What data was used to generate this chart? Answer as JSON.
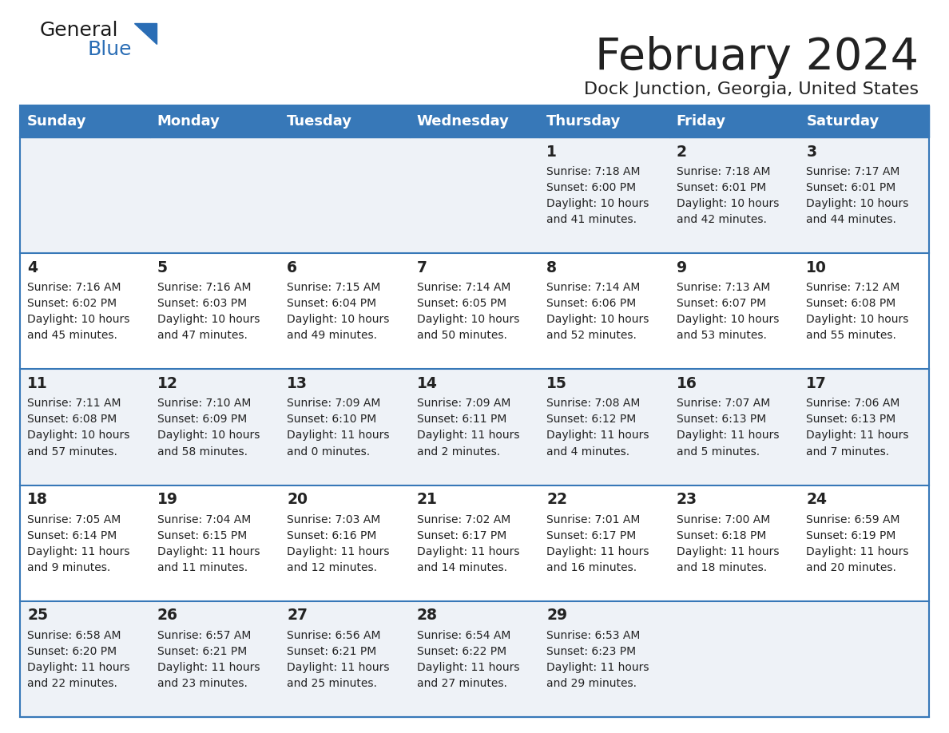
{
  "title": "February 2024",
  "subtitle": "Dock Junction, Georgia, United States",
  "header_color": "#3778b8",
  "header_text_color": "#ffffff",
  "day_names": [
    "Sunday",
    "Monday",
    "Tuesday",
    "Wednesday",
    "Thursday",
    "Friday",
    "Saturday"
  ],
  "row_bg_colors": [
    "#eef2f7",
    "#ffffff"
  ],
  "border_color": "#3778b8",
  "text_color": "#222222",
  "logo_general_color": "#1a1a1a",
  "logo_blue_color": "#2a6db5",
  "calendar_data": [
    [
      "",
      "",
      "",
      "",
      "1\nSunrise: 7:18 AM\nSunset: 6:00 PM\nDaylight: 10 hours\nand 41 minutes.",
      "2\nSunrise: 7:18 AM\nSunset: 6:01 PM\nDaylight: 10 hours\nand 42 minutes.",
      "3\nSunrise: 7:17 AM\nSunset: 6:01 PM\nDaylight: 10 hours\nand 44 minutes."
    ],
    [
      "4\nSunrise: 7:16 AM\nSunset: 6:02 PM\nDaylight: 10 hours\nand 45 minutes.",
      "5\nSunrise: 7:16 AM\nSunset: 6:03 PM\nDaylight: 10 hours\nand 47 minutes.",
      "6\nSunrise: 7:15 AM\nSunset: 6:04 PM\nDaylight: 10 hours\nand 49 minutes.",
      "7\nSunrise: 7:14 AM\nSunset: 6:05 PM\nDaylight: 10 hours\nand 50 minutes.",
      "8\nSunrise: 7:14 AM\nSunset: 6:06 PM\nDaylight: 10 hours\nand 52 minutes.",
      "9\nSunrise: 7:13 AM\nSunset: 6:07 PM\nDaylight: 10 hours\nand 53 minutes.",
      "10\nSunrise: 7:12 AM\nSunset: 6:08 PM\nDaylight: 10 hours\nand 55 minutes."
    ],
    [
      "11\nSunrise: 7:11 AM\nSunset: 6:08 PM\nDaylight: 10 hours\nand 57 minutes.",
      "12\nSunrise: 7:10 AM\nSunset: 6:09 PM\nDaylight: 10 hours\nand 58 minutes.",
      "13\nSunrise: 7:09 AM\nSunset: 6:10 PM\nDaylight: 11 hours\nand 0 minutes.",
      "14\nSunrise: 7:09 AM\nSunset: 6:11 PM\nDaylight: 11 hours\nand 2 minutes.",
      "15\nSunrise: 7:08 AM\nSunset: 6:12 PM\nDaylight: 11 hours\nand 4 minutes.",
      "16\nSunrise: 7:07 AM\nSunset: 6:13 PM\nDaylight: 11 hours\nand 5 minutes.",
      "17\nSunrise: 7:06 AM\nSunset: 6:13 PM\nDaylight: 11 hours\nand 7 minutes."
    ],
    [
      "18\nSunrise: 7:05 AM\nSunset: 6:14 PM\nDaylight: 11 hours\nand 9 minutes.",
      "19\nSunrise: 7:04 AM\nSunset: 6:15 PM\nDaylight: 11 hours\nand 11 minutes.",
      "20\nSunrise: 7:03 AM\nSunset: 6:16 PM\nDaylight: 11 hours\nand 12 minutes.",
      "21\nSunrise: 7:02 AM\nSunset: 6:17 PM\nDaylight: 11 hours\nand 14 minutes.",
      "22\nSunrise: 7:01 AM\nSunset: 6:17 PM\nDaylight: 11 hours\nand 16 minutes.",
      "23\nSunrise: 7:00 AM\nSunset: 6:18 PM\nDaylight: 11 hours\nand 18 minutes.",
      "24\nSunrise: 6:59 AM\nSunset: 6:19 PM\nDaylight: 11 hours\nand 20 minutes."
    ],
    [
      "25\nSunrise: 6:58 AM\nSunset: 6:20 PM\nDaylight: 11 hours\nand 22 minutes.",
      "26\nSunrise: 6:57 AM\nSunset: 6:21 PM\nDaylight: 11 hours\nand 23 minutes.",
      "27\nSunrise: 6:56 AM\nSunset: 6:21 PM\nDaylight: 11 hours\nand 25 minutes.",
      "28\nSunrise: 6:54 AM\nSunset: 6:22 PM\nDaylight: 11 hours\nand 27 minutes.",
      "29\nSunrise: 6:53 AM\nSunset: 6:23 PM\nDaylight: 11 hours\nand 29 minutes.",
      "",
      ""
    ]
  ],
  "fig_width": 11.88,
  "fig_height": 9.18,
  "dpi": 100
}
